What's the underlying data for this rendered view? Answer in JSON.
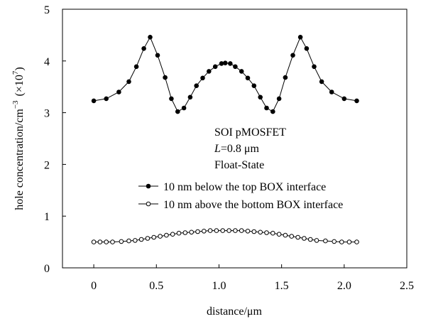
{
  "chart_data": {
    "type": "line",
    "xlabel": "distance/μm",
    "ylabel": {
      "text": "hole concentration/cm",
      "exponent": "−3",
      "scale_open": "(×10",
      "scale_exponent": "7",
      "scale_close": ")"
    },
    "xlim": [
      -0.25,
      2.5
    ],
    "ylim": [
      0,
      5
    ],
    "xticks": [
      0,
      0.5,
      1,
      1.5,
      2,
      2.5
    ],
    "xtick_labels": [
      "0",
      "0.5",
      "1.0",
      "1.5",
      "2.0",
      "2.5"
    ],
    "yticks": [
      0,
      1,
      2,
      3,
      4,
      5
    ],
    "ytick_labels": [
      "0",
      "1",
      "2",
      "3",
      "4",
      "5"
    ],
    "grid": false,
    "annotations": {
      "line1": "SOI pMOSFET",
      "line2_italic": "L",
      "line2_rest": "=0.8 μm",
      "line3": "Float-State"
    },
    "legend_placement": "lower-center",
    "series": [
      {
        "name": "10 nm below the top BOX interface",
        "marker": "filled-circle",
        "color": "#000000",
        "x": [
          0,
          0.1,
          0.2,
          0.28,
          0.34,
          0.4,
          0.45,
          0.51,
          0.57,
          0.62,
          0.67,
          0.72,
          0.77,
          0.82,
          0.87,
          0.92,
          0.97,
          1.02,
          1.05,
          1.09,
          1.13,
          1.18,
          1.23,
          1.28,
          1.33,
          1.38,
          1.43,
          1.48,
          1.53,
          1.59,
          1.65,
          1.7,
          1.76,
          1.82,
          1.9,
          2.0,
          2.1
        ],
        "y": [
          3.23,
          3.27,
          3.4,
          3.6,
          3.89,
          4.24,
          4.46,
          4.11,
          3.68,
          3.27,
          3.02,
          3.09,
          3.3,
          3.52,
          3.67,
          3.8,
          3.89,
          3.95,
          3.96,
          3.95,
          3.89,
          3.8,
          3.67,
          3.52,
          3.3,
          3.09,
          3.02,
          3.27,
          3.68,
          4.11,
          4.46,
          4.24,
          3.89,
          3.6,
          3.4,
          3.27,
          3.23
        ]
      },
      {
        "name": "10 nm above the bottom BOX interface",
        "marker": "open-circle",
        "color": "#000000",
        "x": [
          0,
          0.05,
          0.1,
          0.15,
          0.22,
          0.28,
          0.33,
          0.38,
          0.43,
          0.48,
          0.53,
          0.58,
          0.63,
          0.68,
          0.73,
          0.78,
          0.83,
          0.88,
          0.93,
          0.98,
          1.03,
          1.08,
          1.13,
          1.18,
          1.23,
          1.28,
          1.33,
          1.38,
          1.43,
          1.48,
          1.53,
          1.58,
          1.63,
          1.68,
          1.73,
          1.78,
          1.85,
          1.92,
          1.98,
          2.04,
          2.1
        ],
        "y": [
          0.5,
          0.5,
          0.5,
          0.5,
          0.51,
          0.52,
          0.53,
          0.55,
          0.57,
          0.59,
          0.61,
          0.63,
          0.65,
          0.67,
          0.68,
          0.69,
          0.7,
          0.71,
          0.72,
          0.72,
          0.72,
          0.72,
          0.72,
          0.72,
          0.71,
          0.7,
          0.69,
          0.68,
          0.67,
          0.65,
          0.63,
          0.61,
          0.59,
          0.57,
          0.55,
          0.53,
          0.52,
          0.51,
          0.5,
          0.5,
          0.5
        ]
      }
    ]
  }
}
